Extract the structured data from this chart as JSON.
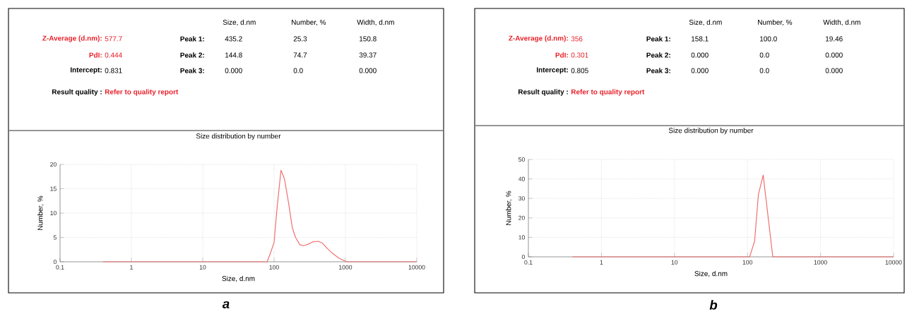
{
  "chart_data": [
    {
      "type": "line",
      "title": "Size distribution by number",
      "xlabel": "Size, d.nm",
      "ylabel": "Number, %",
      "log": "x",
      "grid": true,
      "marker": "none",
      "xlim": [
        0.1,
        10000
      ],
      "xticks": [
        0.1,
        1,
        10,
        100,
        1000,
        10000
      ],
      "ylim": [
        0,
        20
      ],
      "yticks": [
        0,
        5,
        10,
        15,
        20
      ],
      "x": [
        0.4,
        80,
        90,
        100,
        110,
        125,
        140,
        160,
        180,
        200,
        230,
        260,
        300,
        350,
        420,
        480,
        550,
        650,
        800,
        1000,
        1100,
        10000
      ],
      "series": [
        {
          "color": "#f07070",
          "values": [
            0,
            0,
            2,
            4,
            11,
            18.8,
            17,
            12,
            7,
            5,
            3.5,
            3.3,
            3.6,
            4.1,
            4.2,
            3.8,
            2.8,
            1.8,
            0.8,
            0.1,
            0,
            0
          ]
        }
      ],
      "annotations": [
        "Size, d.nm",
        "Number, %",
        "Width, d.nm",
        "Z-Average (d.nm):",
        "577.7",
        "Peak 1:",
        "435.2",
        "25.3",
        "150.8",
        "PdI:",
        "0.444",
        "Peak 2:",
        "144.8",
        "74.7",
        "39.37",
        "Intercept:",
        "0.831",
        "Peak 3:",
        "0.000",
        "0.0",
        "0.000",
        "Result quality :",
        "Refer to quality report",
        "a"
      ]
    },
    {
      "type": "line",
      "title": "Size distribution by number",
      "xlabel": "Size, d.nm",
      "ylabel": "Number, %",
      "log": "x",
      "grid": true,
      "marker": "none",
      "xlim": [
        0.1,
        10000
      ],
      "xticks": [
        0.1,
        1,
        10,
        100,
        1000,
        10000
      ],
      "ylim": [
        0,
        50
      ],
      "yticks": [
        0,
        10,
        20,
        30,
        40,
        50
      ],
      "x": [
        0.4,
        107,
        125,
        141,
        164,
        222,
        10000
      ],
      "series": [
        {
          "color": "#f07070",
          "values": [
            0,
            0,
            8,
            32,
            42,
            0,
            0
          ]
        }
      ],
      "annotations": [
        "Size, d.nm",
        "Number, %",
        "Width, d.nm",
        "Z-Average (d.nm):",
        "356",
        "Peak 1:",
        "158.1",
        "100.0",
        "19.46",
        "PdI:",
        "0.301",
        "Peak 2:",
        "0.000",
        "0.0",
        "0.000",
        "Intercept:",
        "0.805",
        "Peak 3:",
        "0.000",
        "0.0",
        "0.000",
        "Result quality :",
        "Refer to quality report",
        "b"
      ]
    }
  ]
}
